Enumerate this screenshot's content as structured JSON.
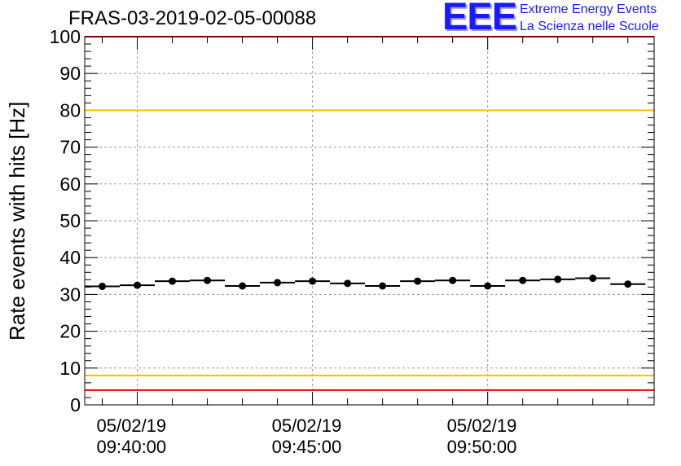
{
  "title": "FRAS-03-2019-02-05-00088",
  "logo": {
    "letters": "EEE",
    "line1": "Extreme Energy Events",
    "line2": "La Scienza nelle Scuole",
    "color": "#1a1aff"
  },
  "chart_data": {
    "type": "scatter",
    "title": "FRAS-03-2019-02-05-00088",
    "xlabel": "",
    "ylabel": "Rate events with hits [Hz]",
    "ylim": [
      0,
      100
    ],
    "yticks": [
      0,
      10,
      20,
      30,
      40,
      50,
      60,
      70,
      80,
      90,
      100
    ],
    "xlim": [
      "05/02/19 09:38:30",
      "05/02/19 09:54:45"
    ],
    "xtick_labels": [
      {
        "date": "05/02/19",
        "time": "09:40:00"
      },
      {
        "date": "05/02/19",
        "time": "09:45:00"
      },
      {
        "date": "05/02/19",
        "time": "09:50:00"
      }
    ],
    "grid": true,
    "reference_lines": [
      {
        "y": 80,
        "color": "#f2c200"
      },
      {
        "y": 8,
        "color": "#f2c200"
      },
      {
        "y": 4,
        "color": "#ee0000"
      },
      {
        "y": 100,
        "color": "#ee0000"
      }
    ],
    "series": [
      {
        "marker_color": "#000000",
        "points": [
          {
            "x": "09:39:00",
            "y": 32.2
          },
          {
            "x": "09:40:00",
            "y": 32.5
          },
          {
            "x": "09:41:00",
            "y": 33.6
          },
          {
            "x": "09:42:00",
            "y": 33.8
          },
          {
            "x": "09:43:00",
            "y": 32.3
          },
          {
            "x": "09:44:00",
            "y": 33.2
          },
          {
            "x": "09:45:00",
            "y": 33.6
          },
          {
            "x": "09:46:00",
            "y": 33.0
          },
          {
            "x": "09:47:00",
            "y": 32.3
          },
          {
            "x": "09:48:00",
            "y": 33.6
          },
          {
            "x": "09:49:00",
            "y": 33.8
          },
          {
            "x": "09:50:00",
            "y": 32.3
          },
          {
            "x": "09:51:00",
            "y": 33.8
          },
          {
            "x": "09:52:00",
            "y": 34.1
          },
          {
            "x": "09:53:00",
            "y": 34.4
          },
          {
            "x": "09:54:00",
            "y": 32.8
          }
        ],
        "bin_width_seconds": 60
      }
    ]
  }
}
